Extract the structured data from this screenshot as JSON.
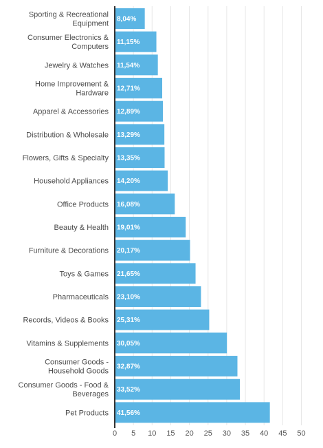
{
  "chart_data": {
    "type": "bar",
    "orientation": "horizontal",
    "categories": [
      "Sporting & Recreational Equipment",
      "Consumer Electronics & Computers",
      "Jewelry & Watches",
      "Home Improvement & Hardware",
      "Apparel & Accessories",
      "Distribution & Wholesale",
      "Flowers, Gifts & Specialty",
      "Household Appliances",
      "Office Products",
      "Beauty & Health",
      "Furniture & Decorations",
      "Toys & Games",
      "Pharmaceuticals",
      "Records, Videos & Books",
      "Vitamins & Supplements",
      "Consumer Goods - Household Goods",
      "Consumer Goods - Food & Beverages",
      "Pet Products"
    ],
    "category_lines": [
      [
        "Sporting & Recreational",
        "Equipment"
      ],
      [
        "Consumer Electronics &",
        "Computers"
      ],
      [
        "Jewelry & Watches"
      ],
      [
        "Home Improvement &",
        "Hardware"
      ],
      [
        "Apparel & Accessories"
      ],
      [
        "Distribution & Wholesale"
      ],
      [
        "Flowers, Gifts & Specialty"
      ],
      [
        "Household Appliances"
      ],
      [
        "Office Products"
      ],
      [
        "Beauty & Health"
      ],
      [
        "Furniture & Decorations"
      ],
      [
        "Toys & Games"
      ],
      [
        "Pharmaceuticals"
      ],
      [
        "Records, Videos & Books"
      ],
      [
        "Vitamins & Supplements"
      ],
      [
        "Consumer Goods -",
        "Household Goods"
      ],
      [
        "Consumer Goods - Food &",
        "Beverages"
      ],
      [
        "Pet Products"
      ]
    ],
    "values": [
      8.04,
      11.15,
      11.54,
      12.71,
      12.89,
      13.29,
      13.35,
      14.2,
      16.08,
      19.01,
      20.17,
      21.65,
      23.1,
      25.31,
      30.05,
      32.87,
      33.52,
      41.56
    ],
    "value_labels": [
      "8,04%",
      "11,15%",
      "11,54%",
      "12,71%",
      "12,89%",
      "13,29%",
      "13,35%",
      "14,20%",
      "16,08%",
      "19,01%",
      "20,17%",
      "21,65%",
      "23,10%",
      "25,31%",
      "30,05%",
      "32,87%",
      "33,52%",
      "41,56%"
    ],
    "xlim": [
      0,
      50
    ],
    "xticks": [
      0,
      5,
      10,
      15,
      20,
      25,
      30,
      35,
      40,
      45,
      50
    ],
    "title": "",
    "xlabel": "",
    "ylabel": "",
    "grid": true,
    "bar_color": "#5bb5e4",
    "gridline_color": "#e6e6e6",
    "axis_color": "#333333"
  }
}
